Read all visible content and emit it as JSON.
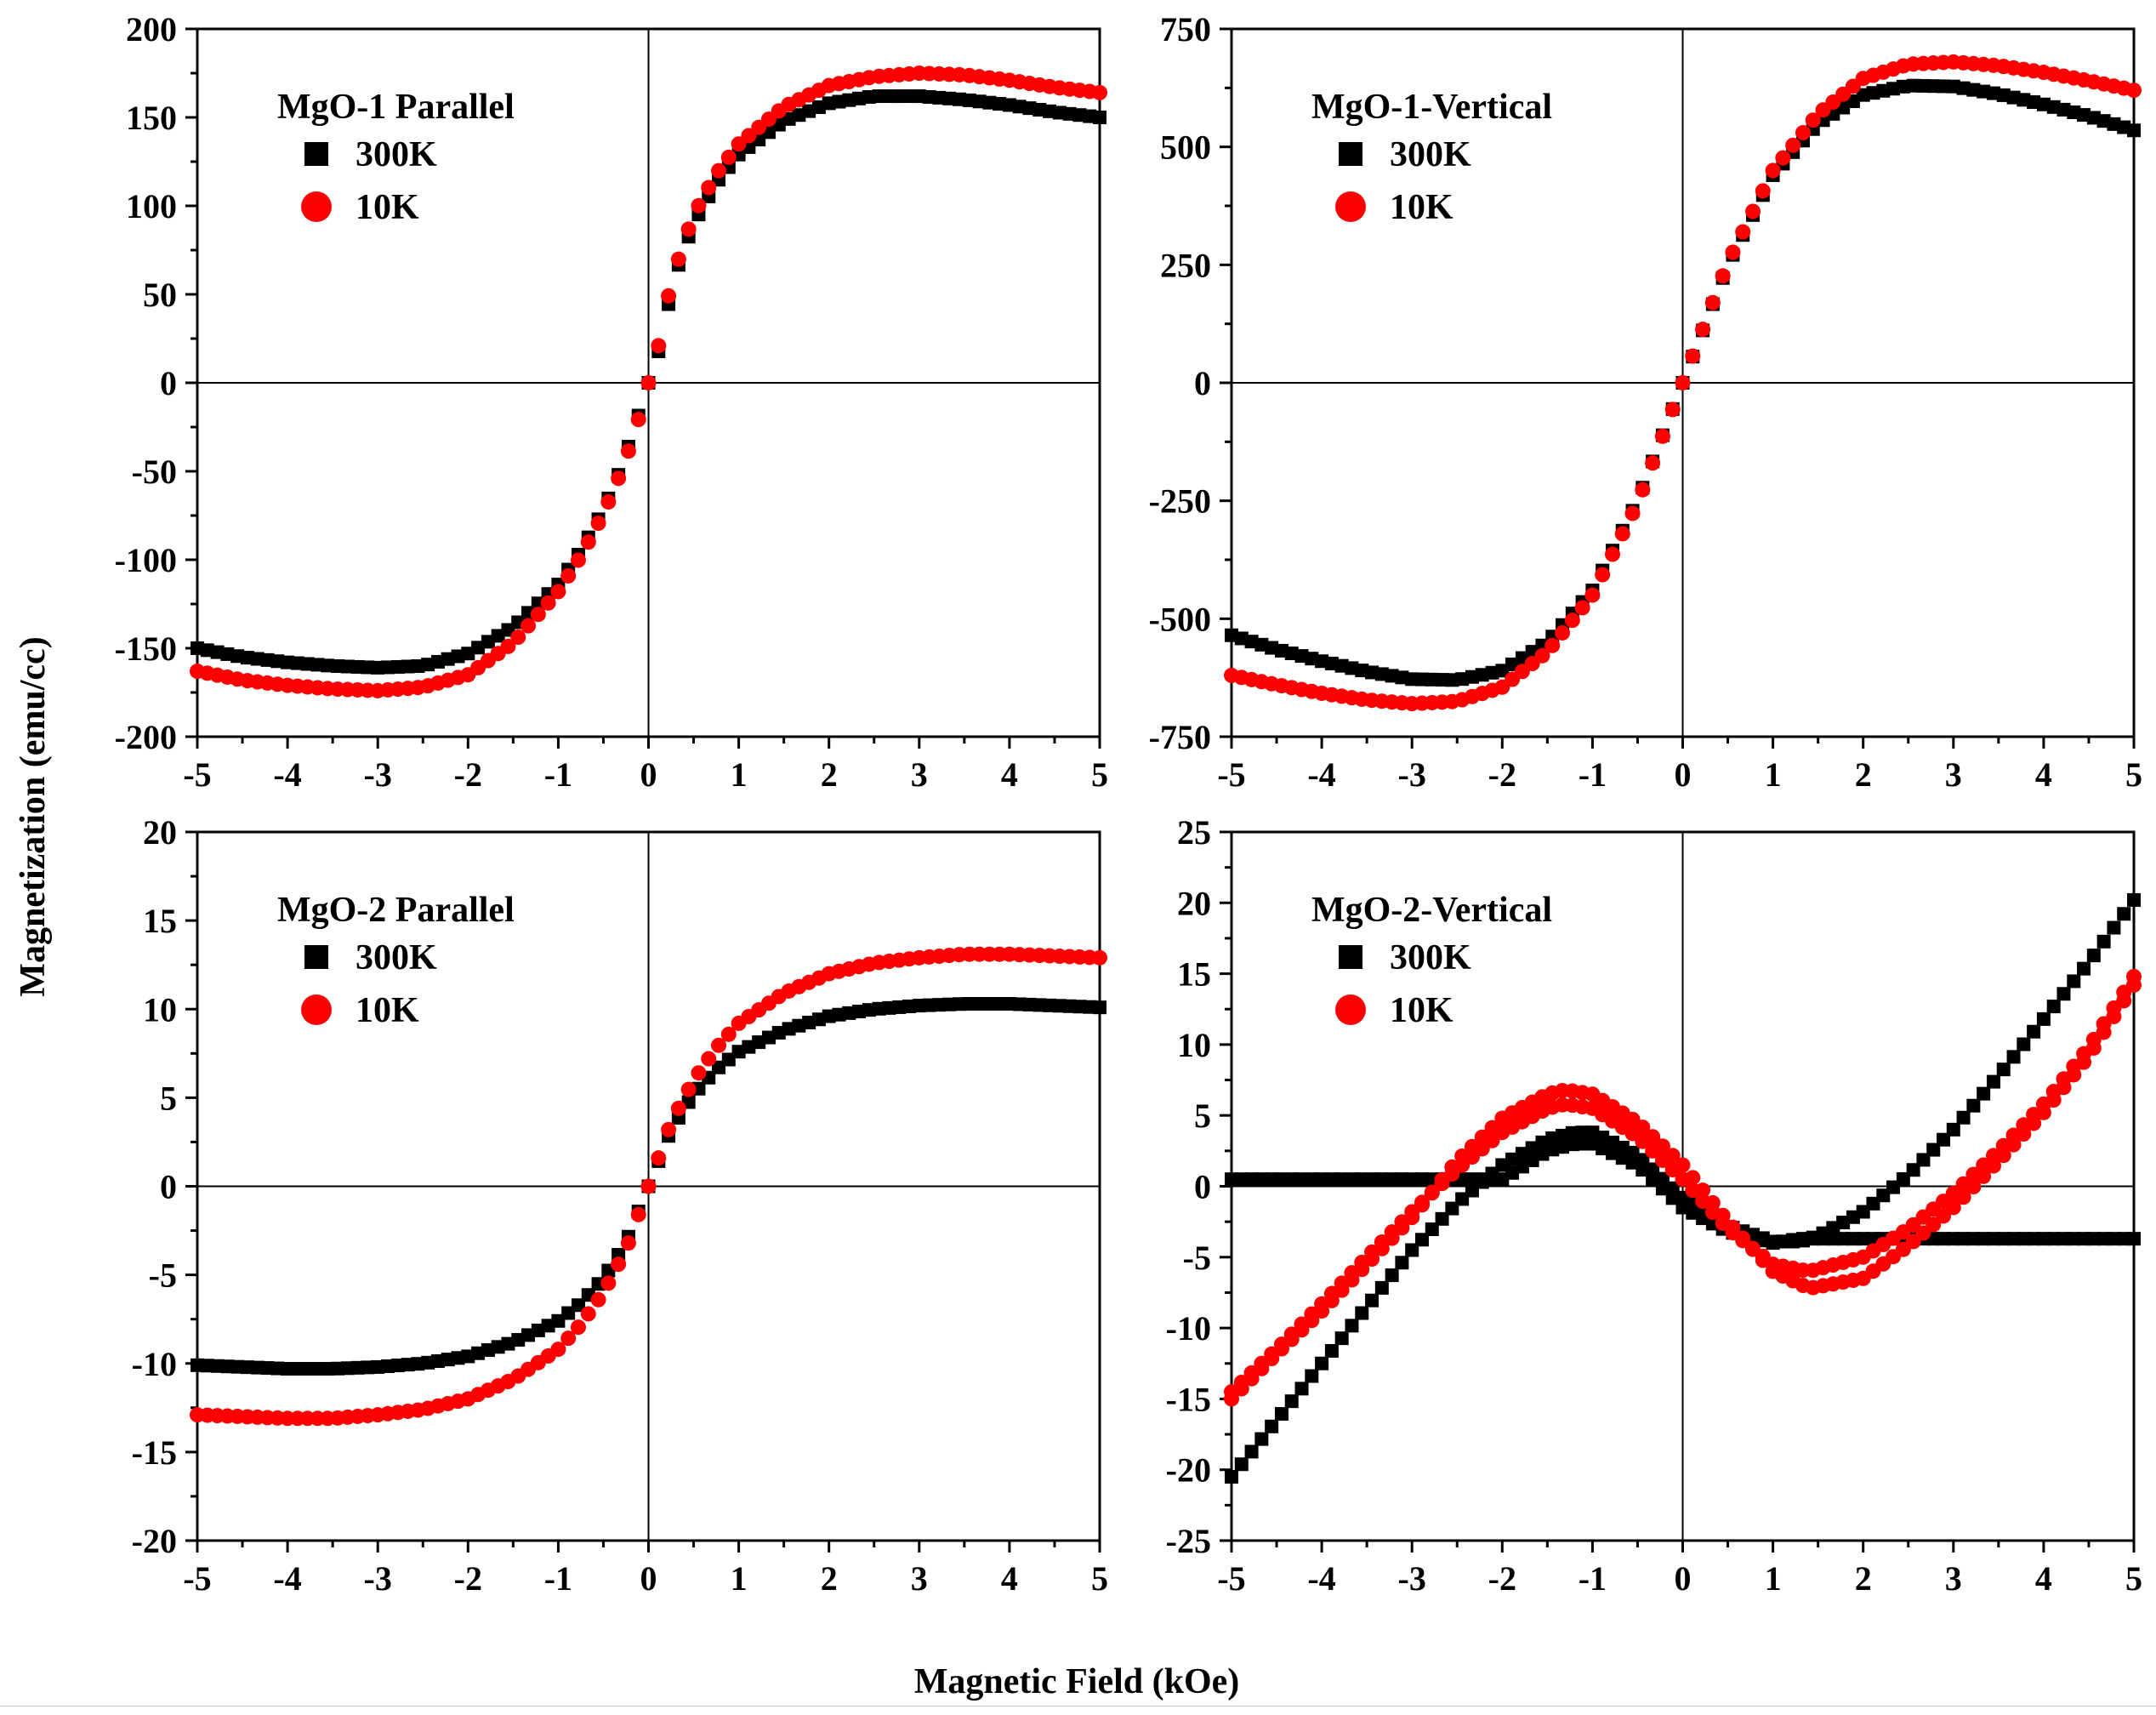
{
  "figure": {
    "ylabel": "Magnetization (emu/cc)",
    "xlabel": "Magnetic Field (kOe)"
  },
  "colors": {
    "series_300K": "#000000",
    "series_10K": "#ff0000",
    "axis": "#000000"
  },
  "chart_data": [
    {
      "type": "scatter",
      "panel": "top-left",
      "title": "MgO-1 Parallel",
      "xlim": [
        -5,
        5
      ],
      "ylim": [
        -200,
        200
      ],
      "xticks": [
        -5,
        -4,
        -3,
        -2,
        -1,
        0,
        1,
        2,
        3,
        4,
        5
      ],
      "yticks": [
        -200,
        -150,
        -100,
        -50,
        0,
        50,
        100,
        150,
        200
      ],
      "xtick_labels": [
        "-5",
        "-4",
        "-3",
        "-2",
        "-1",
        "0",
        "1",
        "2",
        "3",
        "4",
        "5"
      ],
      "ytick_labels": [
        "-200",
        "-150",
        "-100",
        "-50",
        "0",
        "50",
        "100",
        "150",
        "200"
      ],
      "legend": [
        "300K",
        "10K"
      ],
      "legend_placement": "top-left",
      "series": [
        {
          "name": "300K",
          "marker": "square",
          "points": [
            [
              -5,
              -150
            ],
            [
              -4.5,
              -155
            ],
            [
              -4,
              -158
            ],
            [
              -3.5,
              -160
            ],
            [
              -3,
              -161
            ],
            [
              -2.5,
              -160
            ],
            [
              -2,
              -153
            ],
            [
              -1.5,
              -138
            ],
            [
              -1,
              -114
            ],
            [
              -0.75,
              -95
            ],
            [
              -0.5,
              -72
            ],
            [
              -0.3,
              -48
            ],
            [
              -0.15,
              -25
            ],
            [
              0,
              0
            ],
            [
              0.1,
              15
            ],
            [
              0.2,
              40
            ],
            [
              0.35,
              70
            ],
            [
              0.5,
              90
            ],
            [
              0.75,
              113
            ],
            [
              1,
              129
            ],
            [
              1.5,
              148
            ],
            [
              2,
              158
            ],
            [
              2.5,
              162
            ],
            [
              3,
              162
            ],
            [
              3.5,
              160
            ],
            [
              4,
              157
            ],
            [
              4.5,
              153
            ],
            [
              5,
              150
            ]
          ]
        },
        {
          "name": "10K",
          "marker": "circle",
          "points": [
            [
              -5,
              -163
            ],
            [
              -4.5,
              -168
            ],
            [
              -4,
              -171
            ],
            [
              -3.5,
              -173
            ],
            [
              -3,
              -174
            ],
            [
              -2.5,
              -172
            ],
            [
              -2,
              -165
            ],
            [
              -1.5,
              -147
            ],
            [
              -1,
              -118
            ],
            [
              -0.75,
              -98
            ],
            [
              -0.5,
              -74
            ],
            [
              -0.3,
              -50
            ],
            [
              -0.15,
              -28
            ],
            [
              0,
              0
            ],
            [
              0.1,
              18
            ],
            [
              0.2,
              45
            ],
            [
              0.35,
              73
            ],
            [
              0.5,
              95
            ],
            [
              0.75,
              118
            ],
            [
              1,
              135
            ],
            [
              1.5,
              156
            ],
            [
              2,
              168
            ],
            [
              2.5,
              173
            ],
            [
              3,
              175
            ],
            [
              3.5,
              174
            ],
            [
              4,
              171
            ],
            [
              4.5,
              167
            ],
            [
              5,
              164
            ]
          ]
        }
      ]
    },
    {
      "type": "scatter",
      "panel": "top-right",
      "title": "MgO-1-Vertical",
      "xlim": [
        -5,
        5
      ],
      "ylim": [
        -750,
        750
      ],
      "xticks": [
        -5,
        -4,
        -3,
        -2,
        -1,
        0,
        1,
        2,
        3,
        4,
        5
      ],
      "yticks": [
        -750,
        -500,
        -250,
        0,
        250,
        500,
        750
      ],
      "xtick_labels": [
        "-5",
        "-4",
        "-3",
        "-2",
        "-1",
        "0",
        "1",
        "2",
        "3",
        "4",
        "5"
      ],
      "ytick_labels": [
        "-750",
        "-500",
        "-250",
        "0",
        "250",
        "500",
        "750"
      ],
      "legend": [
        "300K",
        "10K"
      ],
      "legend_placement": "top-left",
      "series": [
        {
          "name": "300K",
          "marker": "square",
          "points": [
            [
              -5,
              -535
            ],
            [
              -4.5,
              -565
            ],
            [
              -4,
              -590
            ],
            [
              -3.5,
              -612
            ],
            [
              -3,
              -628
            ],
            [
              -2.5,
              -630
            ],
            [
              -2,
              -610
            ],
            [
              -1.5,
              -550
            ],
            [
              -1,
              -440
            ],
            [
              -0.5,
              -250
            ],
            [
              0,
              0
            ],
            [
              0.5,
              250
            ],
            [
              1,
              440
            ],
            [
              1.5,
              550
            ],
            [
              2,
              610
            ],
            [
              2.5,
              630
            ],
            [
              3,
              628
            ],
            [
              3.5,
              612
            ],
            [
              4,
              590
            ],
            [
              4.5,
              565
            ],
            [
              5,
              535
            ]
          ]
        },
        {
          "name": "10K",
          "marker": "circle",
          "points": [
            [
              -5,
              -620
            ],
            [
              -4.5,
              -640
            ],
            [
              -4,
              -658
            ],
            [
              -3.5,
              -672
            ],
            [
              -3,
              -680
            ],
            [
              -2.5,
              -675
            ],
            [
              -2,
              -645
            ],
            [
              -1.5,
              -570
            ],
            [
              -1,
              -450
            ],
            [
              -0.5,
              -255
            ],
            [
              0,
              0
            ],
            [
              0.5,
              255
            ],
            [
              1,
              450
            ],
            [
              1.5,
              570
            ],
            [
              2,
              645
            ],
            [
              2.5,
              675
            ],
            [
              3,
              680
            ],
            [
              3.5,
              672
            ],
            [
              4,
              658
            ],
            [
              4.5,
              640
            ],
            [
              5,
              620
            ]
          ]
        }
      ]
    },
    {
      "type": "scatter",
      "panel": "bottom-left",
      "title": "MgO-2 Parallel",
      "xlim": [
        -5,
        5
      ],
      "ylim": [
        -20,
        20
      ],
      "xticks": [
        -5,
        -4,
        -3,
        -2,
        -1,
        0,
        1,
        2,
        3,
        4,
        5
      ],
      "yticks": [
        -20,
        -15,
        -10,
        -5,
        0,
        5,
        10,
        15,
        20
      ],
      "xtick_labels": [
        "-5",
        "-4",
        "-3",
        "-2",
        "-1",
        "0",
        "1",
        "2",
        "3",
        "4",
        "5"
      ],
      "ytick_labels": [
        "-20",
        "-15",
        "-10",
        "-5",
        "0",
        "5",
        "10",
        "15",
        "20"
      ],
      "legend": [
        "300K",
        "10K"
      ],
      "legend_placement": "top-left",
      "series": [
        {
          "name": "300K",
          "marker": "square",
          "points": [
            [
              -5,
              -10.1
            ],
            [
              -4.5,
              -10.2
            ],
            [
              -4,
              -10.3
            ],
            [
              -3.5,
              -10.3
            ],
            [
              -3,
              -10.2
            ],
            [
              -2.5,
              -10
            ],
            [
              -2,
              -9.6
            ],
            [
              -1.5,
              -8.8
            ],
            [
              -1,
              -7.6
            ],
            [
              -0.75,
              -6.6
            ],
            [
              -0.5,
              -5.2
            ],
            [
              -0.25,
              -3.2
            ],
            [
              0,
              0
            ],
            [
              0.25,
              3.2
            ],
            [
              0.5,
              5.2
            ],
            [
              0.75,
              6.6
            ],
            [
              1,
              7.6
            ],
            [
              1.5,
              8.8
            ],
            [
              2,
              9.6
            ],
            [
              2.5,
              10
            ],
            [
              3,
              10.2
            ],
            [
              3.5,
              10.3
            ],
            [
              4,
              10.3
            ],
            [
              4.5,
              10.2
            ],
            [
              5,
              10.1
            ]
          ]
        },
        {
          "name": "10K",
          "marker": "circle",
          "points": [
            [
              -5,
              -12.9
            ],
            [
              -4.5,
              -13
            ],
            [
              -4,
              -13.1
            ],
            [
              -3.5,
              -13.1
            ],
            [
              -3,
              -12.9
            ],
            [
              -2.5,
              -12.6
            ],
            [
              -2,
              -12
            ],
            [
              -1.5,
              -10.9
            ],
            [
              -1,
              -9.2
            ],
            [
              -0.75,
              -7.8
            ],
            [
              -0.5,
              -6
            ],
            [
              -0.25,
              -3.6
            ],
            [
              0,
              0
            ],
            [
              0.25,
              3.6
            ],
            [
              0.5,
              6
            ],
            [
              0.75,
              7.8
            ],
            [
              1,
              9.2
            ],
            [
              1.5,
              10.9
            ],
            [
              2,
              12
            ],
            [
              2.5,
              12.6
            ],
            [
              3,
              12.9
            ],
            [
              3.5,
              13.1
            ],
            [
              4,
              13.1
            ],
            [
              4.5,
              13
            ],
            [
              5,
              12.9
            ]
          ]
        }
      ]
    },
    {
      "type": "scatter",
      "panel": "bottom-right",
      "title": "MgO-2-Vertical",
      "xlim": [
        -5,
        5
      ],
      "ylim": [
        -25,
        25
      ],
      "xticks": [
        -5,
        -4,
        -3,
        -2,
        -1,
        0,
        1,
        2,
        3,
        4,
        5
      ],
      "yticks": [
        -25,
        -20,
        -15,
        -10,
        -5,
        0,
        5,
        10,
        15,
        20,
        25
      ],
      "xtick_labels": [
        "-5",
        "-4",
        "-3",
        "-2",
        "-1",
        "0",
        "1",
        "2",
        "3",
        "4",
        "5"
      ],
      "ytick_labels": [
        "-25",
        "-20",
        "-15",
        "-10",
        "-5",
        "0",
        "5",
        "10",
        "15",
        "20",
        "25"
      ],
      "legend": [
        "300K",
        "10K"
      ],
      "legend_placement": "top-left",
      "series": [
        {
          "name": "300K",
          "marker": "square",
          "points": [
            [
              -5,
              -20.5
            ],
            [
              -4.5,
              -16.5
            ],
            [
              -4,
              -12.5
            ],
            [
              -3.5,
              -8.5
            ],
            [
              -3,
              -4.5
            ],
            [
              -2.5,
              -1.2
            ],
            [
              -2,
              1.5
            ],
            [
              -1.5,
              3.3
            ],
            [
              -1.2,
              3.8
            ],
            [
              -1,
              3.8
            ],
            [
              -0.5,
              2.2
            ],
            [
              0,
              -0.8
            ],
            [
              0.5,
              -2.8
            ],
            [
              1,
              -3.9
            ],
            [
              1.3,
              -3.9
            ],
            [
              1.5,
              -3.5
            ],
            [
              2,
              -1.8
            ],
            [
              2.5,
              0.8
            ],
            [
              3,
              4
            ],
            [
              3.5,
              7.8
            ],
            [
              4,
              11.8
            ],
            [
              4.5,
              15.8
            ],
            [
              5,
              20.2
            ]
          ]
        },
        {
          "name": "300K",
          "marker": "square",
          "points": [
            [
              -2,
              0.5
            ],
            [
              -1.5,
              2.5
            ],
            [
              -1.2,
              3
            ],
            [
              -1,
              3
            ],
            [
              -0.5,
              1.5
            ],
            [
              0,
              -1.5
            ],
            [
              0.5,
              -3.2
            ],
            [
              1,
              -4
            ],
            [
              1.3,
              -3.7
            ]
          ]
        },
        {
          "name": "10K",
          "marker": "circle",
          "points": [
            [
              -5,
              -14.5
            ],
            [
              -4.5,
              -11.5
            ],
            [
              -4,
              -8.3
            ],
            [
              -3.5,
              -5
            ],
            [
              -3,
              -1.8
            ],
            [
              -2.5,
              1.2
            ],
            [
              -2,
              3.8
            ],
            [
              -1.5,
              5.5
            ],
            [
              -1.3,
              5.8
            ],
            [
              -1,
              5.5
            ],
            [
              -0.5,
              3.5
            ],
            [
              0,
              0.5
            ],
            [
              0.5,
              -3
            ],
            [
              1,
              -5.5
            ],
            [
              1.4,
              -6
            ],
            [
              2,
              -5
            ],
            [
              2.5,
              -3
            ],
            [
              3,
              -0.5
            ],
            [
              3.5,
              2.5
            ],
            [
              4,
              5.8
            ],
            [
              4.5,
              9.8
            ],
            [
              5,
              14.8
            ]
          ]
        },
        {
          "name": "10K",
          "marker": "circle",
          "points": [
            [
              -5,
              -15
            ],
            [
              -4.5,
              -11.8
            ],
            [
              -4,
              -8.8
            ],
            [
              -3.5,
              -5.5
            ],
            [
              -3,
              -2.2
            ],
            [
              -2.5,
              1.8
            ],
            [
              -2,
              4.8
            ],
            [
              -1.5,
              6.5
            ],
            [
              -1.3,
              6.8
            ],
            [
              -1,
              6.5
            ],
            [
              -0.5,
              4.5
            ],
            [
              0,
              1.5
            ],
            [
              0.5,
              -2.5
            ],
            [
              1,
              -6
            ],
            [
              1.4,
              -7.2
            ],
            [
              2,
              -6.5
            ],
            [
              2.5,
              -4.2
            ],
            [
              3,
              -1.5
            ],
            [
              3.5,
              1.8
            ],
            [
              4,
              5.2
            ],
            [
              4.5,
              9.2
            ],
            [
              5,
              14.2
            ]
          ]
        }
      ]
    }
  ]
}
